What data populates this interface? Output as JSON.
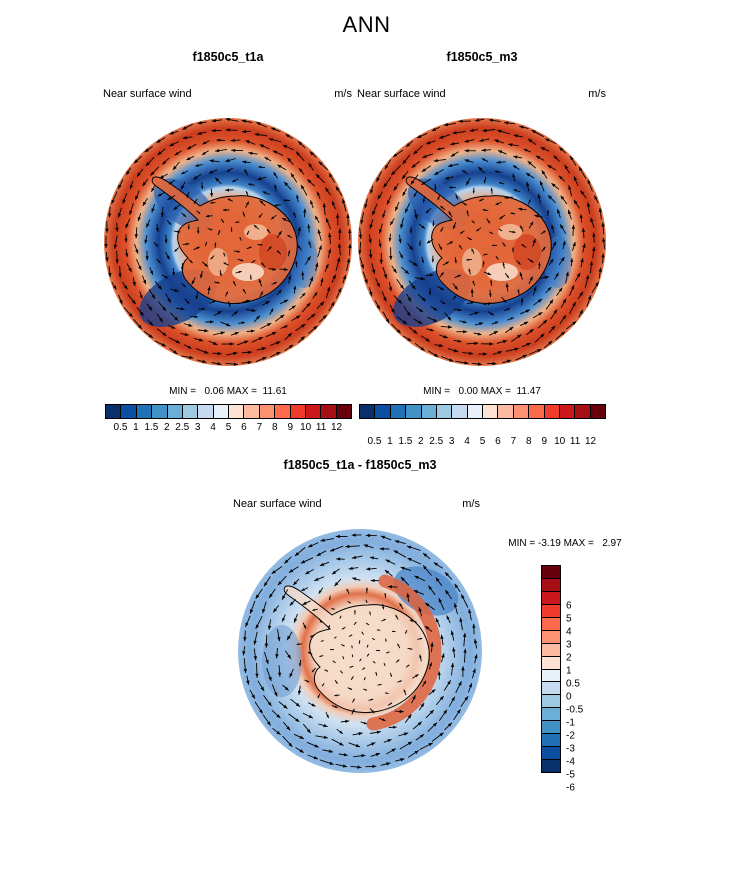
{
  "page": {
    "title": "ANN",
    "background": "#ffffff"
  },
  "panels": [
    {
      "id": "t1a",
      "name": "f1850c5_t1a",
      "variable": "Near surface wind",
      "units": "m/s",
      "minmax": "MIN =   0.06 MAX =  11.61"
    },
    {
      "id": "m3",
      "name": "f1850c5_m3",
      "variable": "Near surface wind",
      "units": "m/s",
      "minmax": "MIN =   0.00 MAX =  11.47"
    },
    {
      "id": "diff",
      "name": "f1850c5_t1a - f1850c5_m3",
      "variable": "Near surface wind",
      "units": "m/s",
      "minmax": "MIN = -3.19 MAX =   2.97"
    }
  ],
  "colorbars": {
    "speed": {
      "orientation": "horizontal",
      "ticks": [
        "0.5",
        "1",
        "1.5",
        "2",
        "2.5",
        "3",
        "4",
        "5",
        "6",
        "7",
        "8",
        "9",
        "10",
        "11",
        "12"
      ],
      "colors": [
        "#08306b",
        "#0b4ea2",
        "#2171b5",
        "#4292c6",
        "#6baed6",
        "#9ecae1",
        "#c6dbef",
        "#e8f1fa",
        "#fde3d3",
        "#fcbba1",
        "#fc9272",
        "#fb6a4a",
        "#ef3b2c",
        "#cb181d",
        "#a50f15",
        "#67000d"
      ]
    },
    "diff": {
      "orientation": "vertical",
      "ticks": [
        "6",
        "5",
        "4",
        "3",
        "2",
        "1",
        "0.5",
        "0",
        "-0.5",
        "-1",
        "-2",
        "-3",
        "-4",
        "-5",
        "-6"
      ],
      "colors": [
        "#67000d",
        "#a50f15",
        "#cb181d",
        "#ef3b2c",
        "#fb6a4a",
        "#fc9272",
        "#fcbba1",
        "#fde3d3",
        "#e8f1fa",
        "#c6dbef",
        "#9ecae1",
        "#6baed6",
        "#4292c6",
        "#2171b5",
        "#0b4ea2",
        "#08306b"
      ]
    }
  },
  "chart_data": [
    {
      "type": "heatmap",
      "subtype": "polar_vector_map",
      "season": "ANN",
      "title": "f1850c5_t1a",
      "variable": "Near surface wind",
      "units": "m/s",
      "projection": "south polar stereographic (Antarctica)",
      "min": 0.06,
      "max": 11.61,
      "contour_levels": [
        0.5,
        1,
        1.5,
        2,
        2.5,
        3,
        4,
        5,
        6,
        7,
        8,
        9,
        10,
        11,
        12
      ],
      "overlay": "wind vectors",
      "legend_position": "below"
    },
    {
      "type": "heatmap",
      "subtype": "polar_vector_map",
      "season": "ANN",
      "title": "f1850c5_m3",
      "variable": "Near surface wind",
      "units": "m/s",
      "projection": "south polar stereographic (Antarctica)",
      "min": 0.0,
      "max": 11.47,
      "contour_levels": [
        0.5,
        1,
        1.5,
        2,
        2.5,
        3,
        4,
        5,
        6,
        7,
        8,
        9,
        10,
        11,
        12
      ],
      "overlay": "wind vectors",
      "legend_position": "below"
    },
    {
      "type": "heatmap",
      "subtype": "polar_vector_map_difference",
      "season": "ANN",
      "title": "f1850c5_t1a - f1850c5_m3",
      "variable": "Near surface wind",
      "units": "m/s",
      "projection": "south polar stereographic (Antarctica)",
      "min": -3.19,
      "max": 2.97,
      "contour_levels": [
        6,
        5,
        4,
        3,
        2,
        1,
        0.5,
        0,
        -0.5,
        -1,
        -2,
        -3,
        -4,
        -5,
        -6
      ],
      "overlay": "wind vectors",
      "legend_position": "right"
    }
  ]
}
